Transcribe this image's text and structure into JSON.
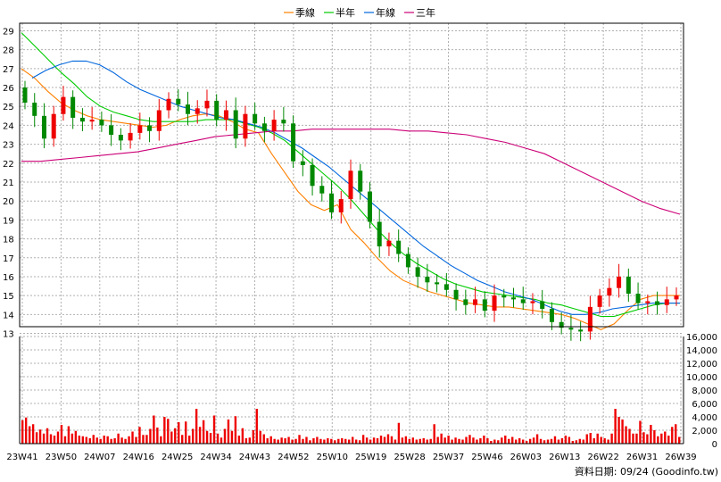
{
  "legend": {
    "items": [
      {
        "label": "季線",
        "color": "#ff8000"
      },
      {
        "label": "半年",
        "color": "#00cc00"
      },
      {
        "label": "年線",
        "color": "#0066dd"
      },
      {
        "label": "三年",
        "color": "#cc0077"
      }
    ]
  },
  "footer": {
    "source": "資料日期: 09/24  (Goodinfo.tw)"
  },
  "colors": {
    "up": "#ee0000",
    "down": "#008800",
    "volume": "#ee0000",
    "grid": "#b0b0b0",
    "axis": "#000000"
  },
  "chart_data": [
    {
      "type": "line",
      "subtype": "candlestick",
      "ylim": [
        12.6,
        29.4
      ],
      "yticks": [
        13,
        14,
        15,
        16,
        17,
        18,
        19,
        20,
        21,
        22,
        23,
        24,
        25,
        26,
        27,
        28,
        29
      ],
      "xlabels": [
        "23W41",
        "23W50",
        "24W07",
        "24W16",
        "24W25",
        "24W34",
        "24W43",
        "24W52",
        "25W10",
        "25W19",
        "25W28",
        "25W37",
        "25W46",
        "26W03",
        "26W13",
        "26W22",
        "26W31",
        "26W39"
      ],
      "grid": true,
      "legend_position": "top",
      "series": [
        {
          "name": "季線",
          "values": [
            27.0,
            26.5,
            25.8,
            25.2,
            24.8,
            24.5,
            24.3,
            24.2,
            24.1,
            24.0,
            23.9,
            24.0,
            24.3,
            24.5,
            24.6,
            24.5,
            24.2,
            23.8,
            23.6,
            22.5,
            21.5,
            20.5,
            19.8,
            19.5,
            19.8,
            18.5,
            17.8,
            17.0,
            16.3,
            15.8,
            15.5,
            15.2,
            15.0,
            14.8,
            14.6,
            14.5,
            14.4,
            14.4,
            14.3,
            14.2,
            14.1,
            14.0,
            13.8,
            13.5,
            13.2,
            13.5,
            14.2,
            14.8,
            15.0,
            15.0,
            15.0
          ]
        },
        {
          "name": "半年",
          "values": [
            28.9,
            28.2,
            27.5,
            26.8,
            26.2,
            25.5,
            25.0,
            24.7,
            24.5,
            24.3,
            24.2,
            24.2,
            24.2,
            24.2,
            24.3,
            24.3,
            24.3,
            24.1,
            23.9,
            23.6,
            23.2,
            22.6,
            22.0,
            21.4,
            20.8,
            20.1,
            19.3,
            18.5,
            17.8,
            17.2,
            16.7,
            16.3,
            15.9,
            15.6,
            15.4,
            15.2,
            15.1,
            15.0,
            14.9,
            14.8,
            14.6,
            14.5,
            14.3,
            14.1,
            13.9,
            13.9,
            14.1,
            14.3,
            14.5,
            14.6,
            14.6
          ]
        },
        {
          "name": "年線",
          "values": [
            26.5,
            26.9,
            27.2,
            27.4,
            27.4,
            27.2,
            26.8,
            26.3,
            25.9,
            25.6,
            25.3,
            25.0,
            24.8,
            24.6,
            24.4,
            24.3,
            24.1,
            23.9,
            23.6,
            23.2,
            22.8,
            22.3,
            21.8,
            21.2,
            20.6,
            20.0,
            19.4,
            18.8,
            18.2,
            17.6,
            17.1,
            16.6,
            16.2,
            15.8,
            15.5,
            15.2,
            15.0,
            14.8,
            14.5,
            14.2,
            14.0,
            14.0,
            14.1,
            14.3,
            14.4,
            14.5,
            14.6,
            14.6,
            14.6
          ]
        },
        {
          "name": "三年",
          "values": [
            22.1,
            22.1,
            22.2,
            22.3,
            22.4,
            22.5,
            22.6,
            22.8,
            23.0,
            23.2,
            23.4,
            23.5,
            23.6,
            23.7,
            23.7,
            23.8,
            23.8,
            23.8,
            23.8,
            23.8,
            23.7,
            23.7,
            23.6,
            23.5,
            23.3,
            23.1,
            22.8,
            22.5,
            22.0,
            21.5,
            21.0,
            20.5,
            20.0,
            19.6,
            19.3
          ]
        },
        {
          "name": "close",
          "values": [
            25.2,
            24.5,
            23.3,
            24.6,
            25.5,
            24.4,
            24.2,
            24.3,
            24.0,
            23.5,
            23.2,
            23.6,
            24.0,
            23.7,
            24.8,
            25.4,
            25.1,
            24.6,
            24.9,
            25.3,
            24.3,
            24.8,
            23.3,
            24.6,
            24.1,
            23.7,
            24.3,
            24.1,
            22.1,
            21.9,
            20.8,
            20.4,
            19.4,
            20.1,
            21.6,
            20.5,
            18.9,
            17.6,
            17.9,
            17.2,
            16.5,
            16.0,
            15.7,
            15.6,
            15.3,
            14.8,
            14.5,
            14.8,
            14.2,
            15.0,
            14.9,
            14.8,
            14.6,
            14.7,
            14.3,
            13.6,
            13.3,
            13.2,
            13.1,
            14.4,
            15.0,
            15.4,
            16.0,
            15.1,
            14.6,
            14.7,
            14.5,
            14.8,
            15.0
          ]
        }
      ]
    },
    {
      "type": "bar",
      "name": "volume",
      "ylim": [
        0,
        16000
      ],
      "yticks": [
        0,
        2000,
        4000,
        6000,
        8000,
        10000,
        12000,
        14000,
        16000
      ],
      "yticklabels": [
        "0",
        "2,000",
        "4,000",
        "6,000",
        "8,000",
        "10,000",
        "12,000",
        "14,000",
        "16,000"
      ],
      "values": [
        3500,
        3900,
        2600,
        2900,
        1700,
        2100,
        1500,
        2300,
        1400,
        1200,
        1800,
        2800,
        1100,
        2600,
        1500,
        1900,
        1200,
        1100,
        1000,
        800,
        1300,
        900,
        700,
        1200,
        1100,
        700,
        800,
        1500,
        900,
        700,
        1100,
        1800,
        1000,
        2500,
        1300,
        1300,
        2200,
        4200,
        2400,
        1100,
        4000,
        3700,
        1800,
        2300,
        3200,
        1300,
        3300,
        1200,
        2200,
        5200,
        2500,
        3500,
        1900,
        1600,
        4200,
        1500,
        900,
        2200,
        3600,
        1900,
        4100,
        1200,
        2300,
        800,
        900,
        2000,
        5200,
        1900,
        1400,
        800,
        1100,
        700,
        600,
        900,
        800,
        1000,
        600,
        700,
        1300,
        700,
        1000,
        500,
        800,
        1000,
        700,
        600,
        800,
        700,
        500,
        700,
        800,
        700,
        600,
        1000,
        600,
        500,
        1300,
        900,
        600,
        900,
        800,
        1200,
        1000,
        1400,
        1100,
        600,
        3100,
        900,
        1100,
        700,
        900,
        600,
        700,
        800,
        600,
        700,
        2900,
        1000,
        1500,
        900,
        1200,
        600,
        900,
        700,
        600,
        1000,
        1300,
        900,
        600,
        800,
        1200,
        800,
        400,
        600,
        500,
        900,
        1200,
        700,
        1000,
        600,
        800,
        600,
        400,
        700,
        900,
        1400,
        700,
        500,
        600,
        700,
        1100,
        600,
        800,
        1200,
        1000,
        400,
        500,
        700,
        600,
        1400,
        1600,
        800,
        1500,
        1000,
        800,
        600,
        1500,
        5200,
        4000,
        3600,
        2600,
        2200,
        1500,
        1500,
        3400,
        1700,
        1400,
        2800,
        2000,
        1100,
        1500,
        1800,
        1200,
        2500,
        2900,
        1000
      ]
    }
  ]
}
